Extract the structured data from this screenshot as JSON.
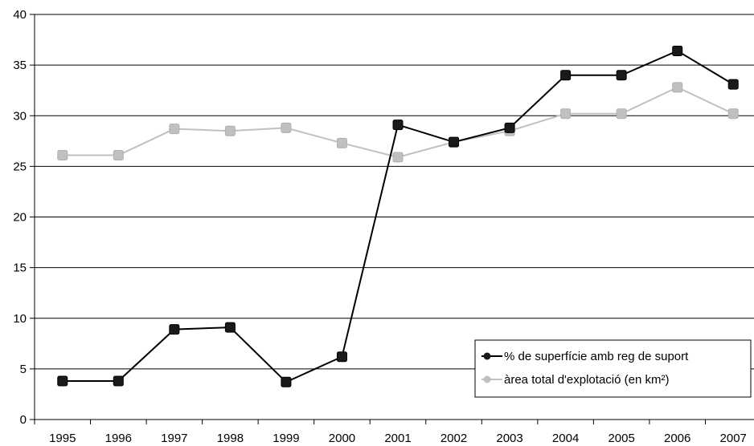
{
  "chart_data": {
    "type": "line",
    "title": "",
    "xlabel": "",
    "ylabel": "",
    "categories": [
      "1995",
      "1996",
      "1997",
      "1998",
      "1999",
      "2000",
      "2001",
      "2002",
      "2003",
      "2004",
      "2005",
      "2006",
      "2007"
    ],
    "ylim": [
      0,
      40
    ],
    "yticks": [
      0,
      5,
      10,
      15,
      20,
      25,
      30,
      35,
      40
    ],
    "grid": "horizontal",
    "legend_position": "bottom-right",
    "series": [
      {
        "name": "% de superfície amb reg de suport",
        "color": "#000000",
        "marker_color": "#1a1a1a",
        "values": [
          3.8,
          3.8,
          8.9,
          9.1,
          3.7,
          6.2,
          29.1,
          27.4,
          28.8,
          34.0,
          34.0,
          36.4,
          33.1
        ]
      },
      {
        "name": "àrea total d'explotació (en km²)",
        "color": "#c0c0c0",
        "marker_color": "#c0c0c0",
        "values": [
          26.1,
          26.1,
          28.7,
          28.5,
          28.8,
          27.3,
          25.9,
          27.4,
          28.5,
          30.2,
          30.2,
          32.8,
          30.2
        ]
      }
    ]
  }
}
